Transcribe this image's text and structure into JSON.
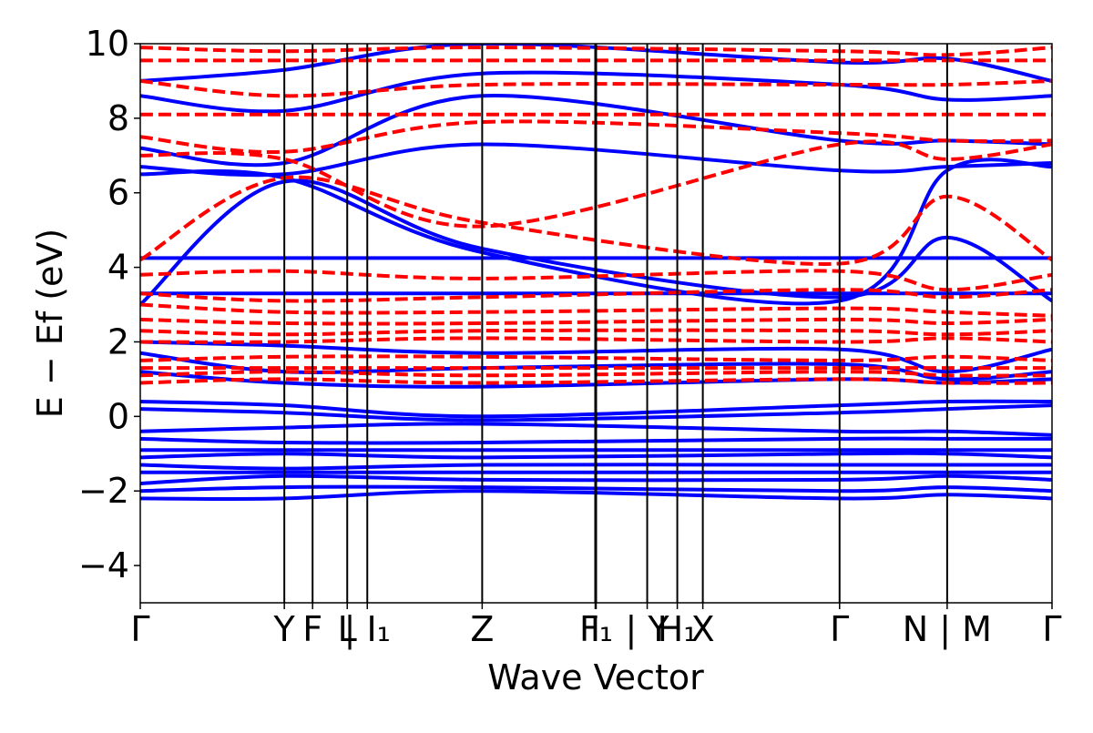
{
  "chart_data": {
    "type": "line",
    "title": "",
    "xlabel": "Wave Vector",
    "ylabel": "E − E_f (eV)",
    "ylabel_display": "E − Ef (eV)",
    "ylim": [
      -5,
      10
    ],
    "yticks": [
      -4,
      -2,
      0,
      2,
      4,
      6,
      8,
      10
    ],
    "ytick_labels": [
      "−4",
      "−2",
      "0",
      "2",
      "4",
      "6",
      "8",
      "10"
    ],
    "xlim": [
      0,
      1
    ],
    "kpoints": [
      {
        "label": "Γ",
        "x": 0.0
      },
      {
        "label": "Y",
        "x": 0.158
      },
      {
        "label": "F",
        "x": 0.189
      },
      {
        "label": "L",
        "x": 0.227
      },
      {
        "label": "| I₁",
        "x": 0.249
      },
      {
        "label": "Z",
        "x": 0.375
      },
      {
        "label": "I",
        "x": 0.499
      },
      {
        "label": "F₁",
        "x": 0.5
      },
      {
        "label": "| Y",
        "x": 0.556
      },
      {
        "label": "H₁",
        "x": 0.589
      },
      {
        "label": "X",
        "x": 0.617
      },
      {
        "label": "Γ",
        "x": 0.767
      },
      {
        "label": "N | M",
        "x": 0.885
      },
      {
        "label": "Γ",
        "x": 1.0
      }
    ],
    "grid": false,
    "series": [
      {
        "style": "solid",
        "color": "#0000ff",
        "x": [
          0,
          0.158,
          0.375,
          0.767,
          0.885,
          1.0
        ],
        "y": [
          -2.2,
          -2.2,
          -2.0,
          -2.2,
          -2.1,
          -2.2
        ]
      },
      {
        "style": "solid",
        "color": "#0000ff",
        "x": [
          0,
          0.158,
          0.375,
          0.767,
          0.885,
          1.0
        ],
        "y": [
          -2.0,
          -1.9,
          -1.9,
          -2.0,
          -1.9,
          -2.0
        ]
      },
      {
        "style": "solid",
        "color": "#0000ff",
        "x": [
          0,
          0.158,
          0.375,
          0.767,
          0.885,
          1.0
        ],
        "y": [
          -1.8,
          -1.6,
          -1.7,
          -1.7,
          -1.6,
          -1.7
        ]
      },
      {
        "style": "solid",
        "color": "#0000ff",
        "x": [
          0,
          0.158,
          0.375,
          0.767,
          0.885,
          1.0
        ],
        "y": [
          -1.5,
          -1.5,
          -1.5,
          -1.5,
          -1.5,
          -1.5
        ]
      },
      {
        "style": "solid",
        "color": "#0000ff",
        "x": [
          0,
          0.158,
          0.375,
          0.767,
          0.885,
          1.0
        ],
        "y": [
          -1.3,
          -1.4,
          -1.3,
          -1.3,
          -1.3,
          -1.3
        ]
      },
      {
        "style": "solid",
        "color": "#0000ff",
        "x": [
          0,
          0.158,
          0.375,
          0.767,
          0.885,
          1.0
        ],
        "y": [
          -1.1,
          -1.0,
          -1.1,
          -1.0,
          -1.0,
          -1.1
        ]
      },
      {
        "style": "solid",
        "color": "#0000ff",
        "x": [
          0,
          0.158,
          0.375,
          0.767,
          0.885,
          1.0
        ],
        "y": [
          -0.9,
          -0.9,
          -0.9,
          -0.9,
          -0.9,
          -0.9
        ]
      },
      {
        "style": "solid",
        "color": "#0000ff",
        "x": [
          0,
          0.158,
          0.375,
          0.767,
          0.885,
          1.0
        ],
        "y": [
          -0.6,
          -0.7,
          -0.7,
          -0.6,
          -0.6,
          -0.6
        ]
      },
      {
        "style": "solid",
        "color": "#0000ff",
        "x": [
          0,
          0.158,
          0.375,
          0.767,
          0.885,
          1.0
        ],
        "y": [
          -0.4,
          -0.3,
          -0.2,
          -0.4,
          -0.4,
          -0.5
        ]
      },
      {
        "style": "solid",
        "color": "#0000ff",
        "x": [
          0,
          0.158,
          0.375,
          0.767,
          0.885,
          1.0
        ],
        "y": [
          0.2,
          0.1,
          -0.1,
          0.1,
          0.2,
          0.3
        ]
      },
      {
        "style": "solid",
        "color": "#0000ff",
        "x": [
          0,
          0.158,
          0.375,
          0.767,
          0.885,
          1.0
        ],
        "y": [
          0.4,
          0.3,
          0.0,
          0.3,
          0.4,
          0.4
        ]
      },
      {
        "style": "solid",
        "color": "#0000ff",
        "x": [
          0,
          0.158,
          0.375,
          0.767,
          0.885,
          1.0
        ],
        "y": [
          1.2,
          0.9,
          0.8,
          1.0,
          0.9,
          1.0
        ]
      },
      {
        "style": "solid",
        "color": "#0000ff",
        "x": [
          0,
          0.158,
          0.375,
          0.767,
          0.885,
          1.0
        ],
        "y": [
          1.7,
          1.2,
          1.3,
          1.4,
          1.0,
          1.2
        ]
      },
      {
        "style": "solid",
        "color": "#0000ff",
        "x": [
          0,
          0.158,
          0.375,
          0.767,
          0.885,
          1.0
        ],
        "y": [
          2.0,
          1.9,
          1.7,
          1.8,
          1.2,
          1.8
        ]
      },
      {
        "style": "solid",
        "color": "#0000ff",
        "x": [
          0,
          0.158,
          0.375,
          0.767,
          0.885,
          1.0
        ],
        "y": [
          3.3,
          3.3,
          3.3,
          3.3,
          3.3,
          3.3
        ]
      },
      {
        "style": "solid",
        "color": "#0000ff",
        "x": [
          0,
          0.158,
          0.375,
          0.767,
          0.885,
          1.0
        ],
        "y": [
          4.25,
          4.25,
          4.25,
          4.25,
          4.25,
          4.25
        ]
      },
      {
        "style": "solid",
        "color": "#0000ff",
        "x": [
          0,
          0.158,
          0.375,
          0.767,
          0.885,
          1.0
        ],
        "y": [
          3.0,
          6.3,
          4.5,
          3.2,
          4.8,
          3.1
        ]
      },
      {
        "style": "solid",
        "color": "#0000ff",
        "x": [
          0,
          0.158,
          0.375,
          0.767,
          0.885,
          1.0
        ],
        "y": [
          6.5,
          6.4,
          4.4,
          3.1,
          6.6,
          6.7
        ]
      },
      {
        "style": "solid",
        "color": "#0000ff",
        "x": [
          0,
          0.158,
          0.375,
          0.767,
          0.885,
          1.0
        ],
        "y": [
          6.7,
          6.5,
          7.3,
          6.6,
          6.7,
          6.8
        ]
      },
      {
        "style": "solid",
        "color": "#0000ff",
        "x": [
          0,
          0.158,
          0.375,
          0.767,
          0.885,
          1.0
        ],
        "y": [
          7.2,
          6.8,
          8.6,
          7.4,
          7.4,
          7.3
        ]
      },
      {
        "style": "solid",
        "color": "#0000ff",
        "x": [
          0,
          0.158,
          0.375,
          0.767,
          0.885,
          1.0
        ],
        "y": [
          8.6,
          8.2,
          9.2,
          8.9,
          8.5,
          8.6
        ]
      },
      {
        "style": "solid",
        "color": "#0000ff",
        "x": [
          0,
          0.158,
          0.375,
          0.767,
          0.885,
          1.0
        ],
        "y": [
          9.0,
          9.3,
          10.0,
          9.5,
          9.6,
          9.0
        ]
      },
      {
        "style": "dashed",
        "color": "#ff0000",
        "x": [
          0,
          0.158,
          0.375,
          0.767,
          0.885,
          1.0
        ],
        "y": [
          0.9,
          1.0,
          0.9,
          1.0,
          0.9,
          0.9
        ]
      },
      {
        "style": "dashed",
        "color": "#ff0000",
        "x": [
          0,
          0.158,
          0.375,
          0.767,
          0.885,
          1.0
        ],
        "y": [
          1.1,
          1.2,
          1.1,
          1.2,
          1.1,
          1.1
        ]
      },
      {
        "style": "dashed",
        "color": "#ff0000",
        "x": [
          0,
          0.158,
          0.375,
          0.767,
          0.885,
          1.0
        ],
        "y": [
          1.3,
          1.3,
          1.3,
          1.3,
          1.3,
          1.3
        ]
      },
      {
        "style": "dashed",
        "color": "#ff0000",
        "x": [
          0,
          0.158,
          0.375,
          0.767,
          0.885,
          1.0
        ],
        "y": [
          1.5,
          1.6,
          1.6,
          1.5,
          1.6,
          1.5
        ]
      },
      {
        "style": "dashed",
        "color": "#ff0000",
        "x": [
          0,
          0.158,
          0.375,
          0.767,
          0.885,
          1.0
        ],
        "y": [
          2.0,
          2.0,
          2.1,
          2.0,
          2.1,
          2.0
        ]
      },
      {
        "style": "dashed",
        "color": "#ff0000",
        "x": [
          0,
          0.158,
          0.375,
          0.767,
          0.885,
          1.0
        ],
        "y": [
          2.3,
          2.2,
          2.3,
          2.3,
          2.2,
          2.3
        ]
      },
      {
        "style": "dashed",
        "color": "#ff0000",
        "x": [
          0,
          0.158,
          0.375,
          0.767,
          0.885,
          1.0
        ],
        "y": [
          2.6,
          2.5,
          2.5,
          2.6,
          2.5,
          2.6
        ]
      },
      {
        "style": "dashed",
        "color": "#ff0000",
        "x": [
          0,
          0.158,
          0.375,
          0.767,
          0.885,
          1.0
        ],
        "y": [
          3.0,
          2.8,
          2.8,
          2.9,
          2.8,
          2.7
        ]
      },
      {
        "style": "dashed",
        "color": "#ff0000",
        "x": [
          0,
          0.158,
          0.375,
          0.767,
          0.885,
          1.0
        ],
        "y": [
          3.3,
          3.1,
          3.2,
          3.4,
          3.2,
          3.4
        ]
      },
      {
        "style": "dashed",
        "color": "#ff0000",
        "x": [
          0,
          0.158,
          0.375,
          0.767,
          0.885,
          1.0
        ],
        "y": [
          3.8,
          3.9,
          3.7,
          3.9,
          3.4,
          3.8
        ]
      },
      {
        "style": "dashed",
        "color": "#ff0000",
        "x": [
          0,
          0.158,
          0.375,
          0.767,
          0.885,
          1.0
        ],
        "y": [
          4.2,
          6.4,
          5.2,
          4.1,
          5.9,
          4.2
        ]
      },
      {
        "style": "dashed",
        "color": "#ff0000",
        "x": [
          0,
          0.158,
          0.375,
          0.767,
          0.885,
          1.0
        ],
        "y": [
          7.0,
          6.9,
          5.1,
          7.3,
          6.9,
          7.3
        ]
      },
      {
        "style": "dashed",
        "color": "#ff0000",
        "x": [
          0,
          0.158,
          0.375,
          0.767,
          0.885,
          1.0
        ],
        "y": [
          7.5,
          7.1,
          7.9,
          7.6,
          7.4,
          7.4
        ]
      },
      {
        "style": "dashed",
        "color": "#ff0000",
        "x": [
          0,
          0.158,
          0.375,
          0.767,
          0.885,
          1.0
        ],
        "y": [
          8.1,
          8.1,
          8.1,
          8.1,
          8.1,
          8.1
        ]
      },
      {
        "style": "dashed",
        "color": "#ff0000",
        "x": [
          0,
          0.158,
          0.375,
          0.767,
          0.885,
          1.0
        ],
        "y": [
          9.0,
          8.6,
          8.9,
          8.9,
          8.9,
          9.0
        ]
      },
      {
        "style": "dashed",
        "color": "#ff0000",
        "x": [
          0,
          0.158,
          0.375,
          0.767,
          0.885,
          1.0
        ],
        "y": [
          9.55,
          9.55,
          9.55,
          9.55,
          9.55,
          9.55
        ]
      },
      {
        "style": "dashed",
        "color": "#ff0000",
        "x": [
          0,
          0.158,
          0.375,
          0.767,
          0.885,
          1.0
        ],
        "y": [
          9.9,
          9.8,
          9.9,
          9.8,
          9.7,
          9.9
        ]
      }
    ]
  }
}
